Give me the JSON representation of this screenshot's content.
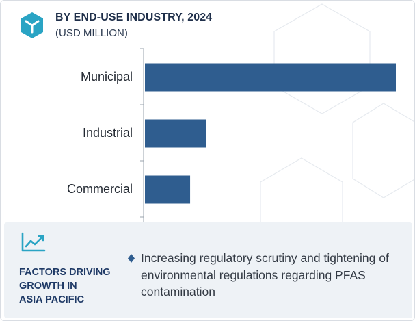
{
  "header": {
    "icon": "cube-logo-icon",
    "title": "BY END-USE INDUSTRY, 2024",
    "subtitle": "(USD MILLION)"
  },
  "colors": {
    "bar": "#2f5d8f",
    "accent": "#2aa4c4",
    "heading": "#1f3a66",
    "panel_bg": "#eef2f6",
    "axis": "#9aa3ad"
  },
  "chart_data": {
    "type": "bar",
    "orientation": "horizontal",
    "categories": [
      "Municipal",
      "Industrial",
      "Commercial"
    ],
    "values": [
      100,
      24.5,
      18
    ],
    "title": "BY END-USE INDUSTRY, 2024",
    "subtitle": "(USD MILLION)",
    "xlabel": "",
    "ylabel": "",
    "xlim": [
      0,
      100
    ],
    "grid": false,
    "legend": "none",
    "value_axis_labels": "none"
  },
  "panel": {
    "icon": "line-chart-icon",
    "heading_lines": [
      "FACTORS DRIVING",
      "GROWTH IN",
      "ASIA PACIFIC"
    ],
    "bullet_icon": "diamond-bullet-icon",
    "bullet": "Increasing regulatory scrutiny and tightening of environmental regulations regarding PFAS contamination"
  }
}
